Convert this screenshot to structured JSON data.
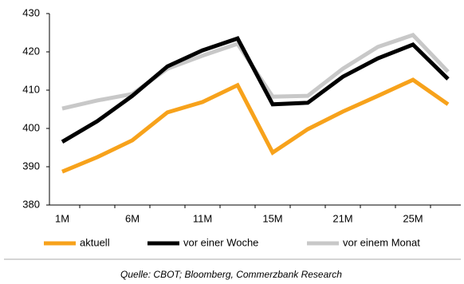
{
  "chart_data": {
    "type": "line",
    "categories": [
      "1M",
      null,
      "6M",
      null,
      "11M",
      null,
      "15M",
      null,
      "21M",
      null,
      "25M",
      null
    ],
    "series": [
      {
        "name": "aktuell",
        "color": "#f7a21b",
        "values": [
          388.7,
          392.5,
          396.9,
          404.2,
          406.9,
          411.3,
          393.7,
          399.8,
          404.4,
          408.5,
          412.7,
          406.3
        ]
      },
      {
        "name": "vor einer Woche",
        "color": "#000000",
        "values": [
          396.5,
          401.9,
          408.5,
          416.2,
          420.4,
          423.5,
          406.3,
          406.7,
          413.5,
          418.3,
          421.9,
          412.9
        ]
      },
      {
        "name": "vor einem Monat",
        "color": "#c8c8c8",
        "values": [
          405.2,
          407.3,
          409.0,
          415.6,
          419.0,
          422.1,
          408.3,
          408.5,
          415.6,
          421.3,
          424.4,
          414.8
        ]
      }
    ],
    "ylim": [
      380,
      430
    ],
    "yticks": [
      380,
      390,
      400,
      410,
      420,
      430
    ],
    "source": "Quelle: CBOT; Bloomberg, Commerzbank Research"
  }
}
